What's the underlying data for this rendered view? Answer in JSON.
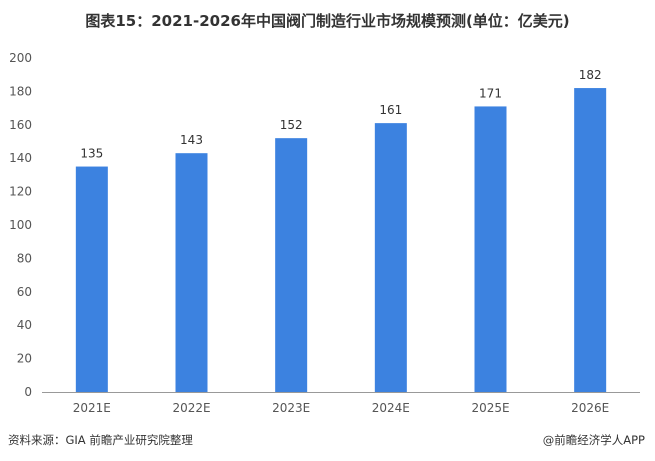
{
  "chart_data": {
    "type": "bar",
    "title": "图表15：2021-2026年中国阀门制造行业市场规模预测(单位：亿美元)",
    "categories": [
      "2021E",
      "2022E",
      "2023E",
      "2024E",
      "2025E",
      "2026E"
    ],
    "series": [
      {
        "values": [
          135,
          143,
          152,
          161,
          171,
          182
        ]
      }
    ],
    "ylim": [
      0,
      200
    ],
    "yticks": [
      0,
      20,
      40,
      60,
      80,
      100,
      120,
      140,
      160,
      180,
      200
    ],
    "grid": false,
    "bar_color": "#3c82e0",
    "show_data_labels": true
  },
  "footer": {
    "source": "资料来源：GIA 前瞻产业研究院整理",
    "brand": "@前瞻经济学人APP"
  }
}
